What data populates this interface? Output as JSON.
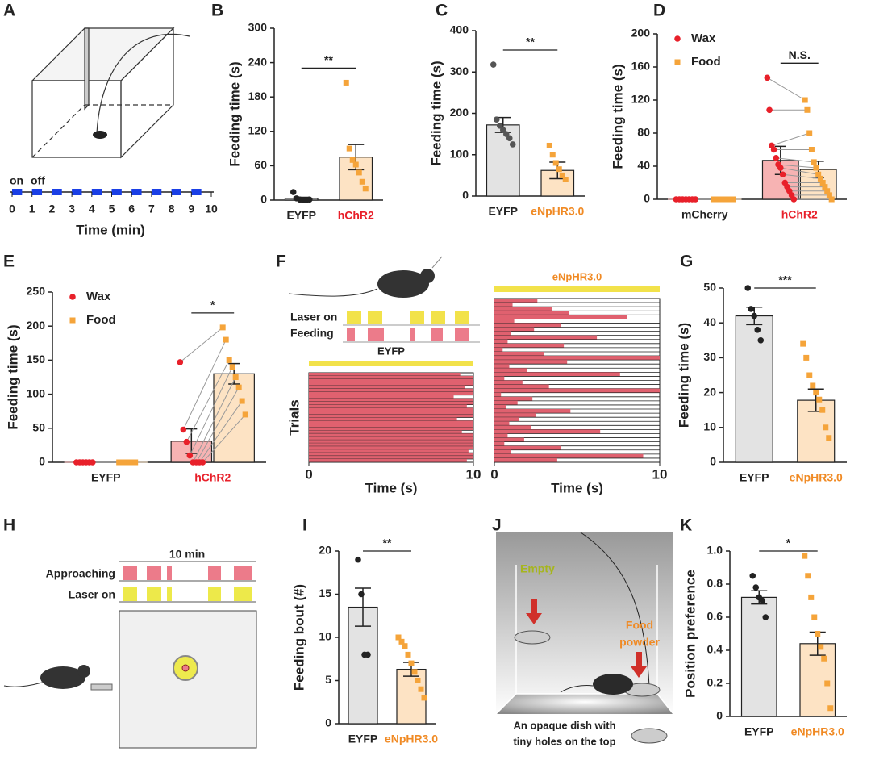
{
  "chart_data": [
    {
      "panel": "B",
      "type": "bar",
      "ylabel": "Feeding time (s)",
      "categories": [
        "EYFP",
        "hChR2"
      ],
      "category_colors": [
        "#222222",
        "#e8202a"
      ],
      "values": [
        3,
        75
      ],
      "errors": [
        2,
        22
      ],
      "bar_colors": [
        "#e3e3e3",
        "#fde3c4"
      ],
      "point_colors": [
        "#222222",
        "#f5a43a"
      ],
      "point_markers": [
        "circle",
        "square"
      ],
      "points": [
        [
          14,
          3,
          1,
          0,
          0,
          1
        ],
        [
          205,
          90,
          70,
          62,
          48,
          32,
          20
        ]
      ],
      "ylim": [
        0,
        300
      ],
      "yticks": [
        0,
        60,
        120,
        180,
        240,
        300
      ],
      "significance": "**"
    },
    {
      "panel": "C",
      "type": "bar",
      "ylabel": "Feeding time (s)",
      "categories": [
        "EYFP",
        "eNpHR3.0"
      ],
      "category_colors": [
        "#222222",
        "#f08a24"
      ],
      "values": [
        172,
        62
      ],
      "errors": [
        18,
        20
      ],
      "bar_colors": [
        "#e3e3e3",
        "#fde3c4"
      ],
      "point_colors": [
        "#555555",
        "#f5a43a"
      ],
      "point_markers": [
        "circle",
        "square"
      ],
      "points": [
        [
          318,
          185,
          170,
          160,
          150,
          140,
          125
        ],
        [
          122,
          100,
          80,
          65,
          50,
          40
        ]
      ],
      "ylim": [
        0,
        400
      ],
      "yticks": [
        0,
        100,
        200,
        300,
        400
      ],
      "significance": "**"
    },
    {
      "panel": "D",
      "type": "grouped_bar",
      "ylabel": "Feeding time (s)",
      "categories": [
        "mCherry",
        "hChR2"
      ],
      "category_colors": [
        "#222222",
        "#e8202a"
      ],
      "series": [
        {
          "name": "Wax",
          "color": "#e8202a",
          "bar_color": "#f7b3b3",
          "marker": "circle",
          "values": [
            0,
            47
          ],
          "errors": [
            0,
            17
          ],
          "points": [
            [
              0,
              0,
              0,
              0,
              0,
              0,
              0
            ],
            [
              147,
              108,
              65,
              60,
              50,
              42,
              38,
              30,
              20,
              15,
              10,
              5,
              0
            ]
          ]
        },
        {
          "name": "Food",
          "color": "#f5a43a",
          "bar_color": "#fde3c4",
          "marker": "square",
          "values": [
            0,
            36
          ],
          "errors": [
            0,
            10
          ],
          "points": [
            [
              0,
              0,
              0,
              0,
              0,
              0,
              0
            ],
            [
              120,
              108,
              80,
              60,
              45,
              38,
              30,
              25,
              20,
              15,
              10,
              5,
              0
            ]
          ]
        }
      ],
      "paired": true,
      "legend": "upper left",
      "ylim": [
        0,
        200
      ],
      "yticks": [
        0,
        40,
        80,
        120,
        160,
        200
      ],
      "significance": "N.S."
    },
    {
      "panel": "E",
      "type": "grouped_bar",
      "ylabel": "Feeding time (s)",
      "categories": [
        "EYFP",
        "hChR2"
      ],
      "category_colors": [
        "#222222",
        "#e8202a"
      ],
      "series": [
        {
          "name": "Wax",
          "color": "#e8202a",
          "bar_color": "#f7b3b3",
          "marker": "circle",
          "values": [
            0,
            31
          ],
          "errors": [
            0,
            18
          ],
          "points": [
            [
              0,
              0,
              0,
              0,
              0,
              0
            ],
            [
              147,
              48,
              30,
              10,
              0,
              0,
              0,
              0
            ]
          ]
        },
        {
          "name": "Food",
          "color": "#f5a43a",
          "bar_color": "#fde3c4",
          "marker": "square",
          "values": [
            0,
            130
          ],
          "errors": [
            0,
            15
          ],
          "points": [
            [
              0,
              0,
              0,
              0,
              0,
              0
            ],
            [
              198,
              180,
              150,
              140,
              125,
              110,
              90,
              70
            ]
          ]
        }
      ],
      "paired": true,
      "legend": "upper left",
      "ylim": [
        0,
        250
      ],
      "yticks": [
        0,
        50,
        100,
        150,
        200,
        250
      ],
      "significance": "*"
    },
    {
      "panel": "G",
      "type": "bar",
      "ylabel": "Feeding time (s)",
      "categories": [
        "EYFP",
        "eNpHR3.0"
      ],
      "category_colors": [
        "#222222",
        "#f08a24"
      ],
      "values": [
        42,
        17.8
      ],
      "errors": [
        2.5,
        3.2
      ],
      "bar_colors": [
        "#e3e3e3",
        "#fde3c4"
      ],
      "point_colors": [
        "#222222",
        "#f5a43a"
      ],
      "point_markers": [
        "circle",
        "square"
      ],
      "points": [
        [
          50,
          44,
          42,
          38,
          35
        ],
        [
          34,
          30,
          25,
          22,
          20,
          18,
          15,
          10,
          7
        ]
      ],
      "ylim": [
        0,
        50
      ],
      "yticks": [
        0,
        10,
        20,
        30,
        40,
        50
      ],
      "significance": "***"
    },
    {
      "panel": "I",
      "type": "bar",
      "ylabel": "Feeding bout (#)",
      "categories": [
        "EYFP",
        "eNpHR3.0"
      ],
      "category_colors": [
        "#222222",
        "#f08a24"
      ],
      "values": [
        13.5,
        6.3
      ],
      "errors": [
        2.2,
        0.8
      ],
      "bar_colors": [
        "#e3e3e3",
        "#fde3c4"
      ],
      "point_colors": [
        "#222222",
        "#f5a43a"
      ],
      "point_markers": [
        "circle",
        "square"
      ],
      "points": [
        [
          19,
          15,
          8,
          8
        ],
        [
          10,
          9.5,
          9,
          8,
          7,
          6,
          5,
          4,
          3
        ]
      ],
      "ylim": [
        0,
        20
      ],
      "yticks": [
        0,
        5,
        10,
        15,
        20
      ],
      "significance": "**"
    },
    {
      "panel": "K",
      "type": "bar",
      "ylabel": "Position preference",
      "categories": [
        "EYFP",
        "eNpHR3.0"
      ],
      "category_colors": [
        "#222222",
        "#f08a24"
      ],
      "values": [
        0.72,
        0.44
      ],
      "errors": [
        0.04,
        0.07
      ],
      "bar_colors": [
        "#e3e3e3",
        "#fde3c4"
      ],
      "point_colors": [
        "#222222",
        "#f5a43a"
      ],
      "point_markers": [
        "circle",
        "square"
      ],
      "points": [
        [
          0.85,
          0.78,
          0.72,
          0.7,
          0.6
        ],
        [
          0.97,
          0.85,
          0.72,
          0.6,
          0.5,
          0.42,
          0.35,
          0.2,
          0.05
        ]
      ],
      "ylim": [
        0,
        1
      ],
      "yticks": [
        0,
        0.2,
        0.4,
        0.6,
        0.8,
        {
          "value": 1,
          "label": "1.0"
        }
      ],
      "significance": "*"
    },
    {
      "type": "raster",
      "title": "EYFP",
      "title_color": "#222222",
      "ylabel": "Trials",
      "xlabel": "Time (s)",
      "color": "#e0616f",
      "xlim": [
        0,
        10
      ],
      "xticks": [
        0,
        10
      ],
      "values": [
        9.2,
        10,
        10,
        10,
        9.5,
        10,
        10,
        8.8,
        10,
        10,
        9.6,
        10,
        10,
        10,
        9.0,
        10,
        10,
        10,
        9.3,
        10,
        10,
        10,
        10,
        10,
        9.7,
        10,
        10,
        9.6
      ]
    },
    {
      "type": "raster",
      "title": "eNpHR3.0",
      "title_color": "#f08a24",
      "xlabel": "Time (s)",
      "color": "#e0616f",
      "xlim": [
        0,
        10
      ],
      "xticks": [
        0,
        10
      ],
      "values": [
        2.6,
        1.1,
        3.5,
        4.5,
        8.0,
        1.2,
        4.0,
        2.4,
        1.0,
        6.2,
        0.8,
        4.2,
        0.5,
        3.0,
        10,
        4.4,
        0.9,
        2.0,
        7.6,
        0.6,
        1.7,
        3.3,
        10,
        0.4,
        2.3,
        1.4,
        0.7,
        4.6,
        2.5,
        1.5,
        0.9,
        2.2,
        6.4,
        0.8,
        1.8,
        0.6,
        4.0,
        1.0,
        9.0,
        3.8
      ]
    }
  ],
  "diagrams": {
    "A": {
      "panel": "A",
      "on": "on",
      "off": "off",
      "xlabel": "Time (min)",
      "xlim": [
        0,
        10
      ],
      "xticks": [
        0,
        1,
        2,
        3,
        4,
        5,
        6,
        7,
        8,
        9,
        10
      ]
    },
    "F": {
      "panel": "F",
      "laser_on": "Laser on",
      "feeding": "Feeding"
    },
    "H": {
      "panel": "H",
      "duration": "10 min",
      "approaching": "Approaching",
      "laser_on": "Laser on"
    },
    "J": {
      "panel": "J",
      "empty": "Empty",
      "food": [
        "Food",
        "powder"
      ],
      "caption": [
        "An opaque dish with",
        "tiny holes on the top"
      ]
    }
  }
}
